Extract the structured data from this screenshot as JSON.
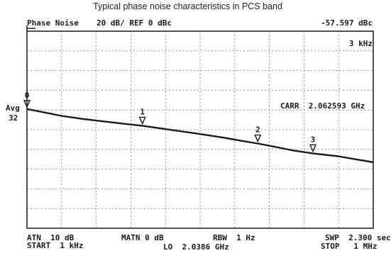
{
  "header": {
    "title": "Typical phase noise characteristics in PCS band",
    "mode_label": "Phase Noise",
    "scale_label": "20 dB/ REF 0 dBc",
    "marker_readout": "-57.597 dBc",
    "span_readout": "3 kHz"
  },
  "side": {
    "avg_label": "Avg",
    "avg_count": "32",
    "carrier_readout": "CARR  2.062593 GHz"
  },
  "footer": {
    "atn": "ATN  10 dB",
    "start": "START  1 kHz",
    "mkr_atn": "MATN 0 dB",
    "lo": "LO  2.0386 GHz",
    "rbw": "RBW  1 Hz",
    "swp": "SWP  2.300 sec",
    "stop": "STOP   1 MHz"
  },
  "chart_data": {
    "type": "line",
    "title": "Typical phase noise characteristics in PCS band",
    "xlabel": "",
    "ylabel": "",
    "x_unit": "kHz",
    "y_unit": "dBc",
    "xlim": [
      1,
      1000
    ],
    "x_scale": "log",
    "ylim": [
      -200,
      0
    ],
    "grid": true,
    "colors": {
      "trace": "#1a1a1a",
      "grid": "#7a7a7a"
    },
    "series": [
      {
        "x": [
          1,
          1.5,
          2,
          3,
          5,
          7,
          10,
          15,
          20,
          30,
          50,
          70,
          100,
          150,
          200,
          300,
          500,
          700,
          1000
        ],
        "y": [
          -79,
          -83,
          -86,
          -89,
          -92,
          -94,
          -96,
          -99,
          -101,
          -104,
          -108,
          -111,
          -114,
          -118,
          -121,
          -124,
          -127,
          -130,
          -133
        ]
      }
    ],
    "markers": [
      {
        "label": "0",
        "x": 1,
        "y": -79
      },
      {
        "label": "1",
        "x": 10,
        "y": -96
      },
      {
        "label": "2",
        "x": 100,
        "y": -114
      },
      {
        "label": "3",
        "x": 300,
        "y": -124
      }
    ]
  }
}
